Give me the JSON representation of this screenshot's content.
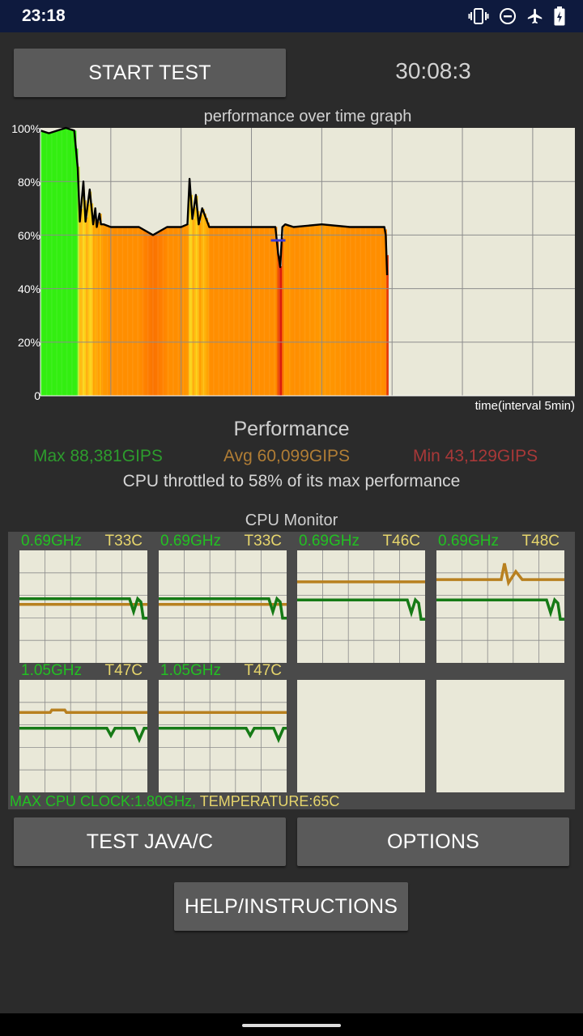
{
  "status_bar": {
    "time": "23:18",
    "icons": [
      "vibrate-icon",
      "do-not-disturb-icon",
      "airplane-mode-icon",
      "battery-charging-icon"
    ]
  },
  "controls": {
    "start_label": "START TEST",
    "timer": "30:08:3"
  },
  "graph": {
    "title": "performance over time graph",
    "y_ticks": [
      "100%",
      "80%",
      "60%",
      "40%",
      "20%",
      "0"
    ],
    "x_label": "time(interval 5min)",
    "chart_data": {
      "type": "line",
      "title": "performance over time graph",
      "xlabel": "time(interval 5min)",
      "ylabel": "",
      "ylim": [
        0,
        100
      ],
      "grid": true,
      "x": [
        0,
        0.6,
        1.8,
        2.4,
        2.65,
        2.8,
        3.05,
        3.2,
        3.5,
        3.75,
        3.9,
        4.0,
        4.2,
        4.3,
        4.5,
        5.0,
        6.0,
        7.0,
        8.0,
        9.0,
        9.6,
        10.0,
        10.45,
        10.6,
        10.8,
        11.05,
        11.25,
        11.5,
        12.0,
        13.0,
        14.0,
        16.0,
        16.7,
        16.9,
        17.05,
        17.2,
        17.4,
        18.0,
        20.0,
        22.0,
        24.0,
        24.45,
        24.55,
        24.65
      ],
      "series": [
        {
          "values": [
            99,
            98,
            100,
            99,
            85,
            65,
            80,
            65,
            77,
            64,
            70,
            63,
            68,
            64,
            64,
            63,
            63,
            63,
            60,
            63,
            63,
            63,
            64,
            81,
            66,
            75,
            64,
            70,
            63,
            63,
            63,
            63,
            63,
            53,
            48,
            63,
            64,
            63,
            64,
            63,
            63,
            63,
            60,
            45
          ]
        }
      ],
      "markers": [
        {
          "x": 16.9,
          "y": 58,
          "color": "#3b3bd8"
        }
      ],
      "colors": {
        "line": "#000000",
        "fill_high": "#33ee11",
        "fill_mid": "#ff9900",
        "fill_low": "#d8170d",
        "background": "#e9e8d8",
        "grid": "#8c8c8c"
      }
    }
  },
  "performance": {
    "title": "Performance",
    "max": "Max 88,381GIPS",
    "avg": "Avg 60,099GIPS",
    "min": "Min 43,129GIPS",
    "throttle": "CPU throttled to 58% of its max performance",
    "colors": {
      "max": "#2d9c2d",
      "avg": "#b07d35",
      "min": "#a83838"
    }
  },
  "cpu_monitor": {
    "title": "CPU Monitor",
    "cores": [
      {
        "freq": "0.69GHz",
        "temp": "T33C",
        "temp_level": 0.52,
        "freq_level": 0.57,
        "freq_dips": true
      },
      {
        "freq": "0.69GHz",
        "temp": "T33C",
        "temp_level": 0.52,
        "freq_level": 0.57,
        "freq_dips": true
      },
      {
        "freq": "0.69GHz",
        "temp": "T46C",
        "temp_level": 0.72,
        "freq_level": 0.56,
        "freq_dips": true
      },
      {
        "freq": "0.69GHz",
        "temp": "T48C",
        "temp_level": 0.74,
        "freq_level": 0.56,
        "freq_dips": true
      },
      {
        "freq": "1.05GHz",
        "temp": "T47C",
        "temp_level": 0.71,
        "freq_level": 0.57,
        "freq_dips": true
      },
      {
        "freq": "1.05GHz",
        "temp": "T47C",
        "temp_level": 0.71,
        "freq_level": 0.57,
        "freq_dips": true
      },
      {
        "freq": "",
        "temp": "",
        "temp_level": null,
        "freq_level": null
      },
      {
        "freq": "",
        "temp": "",
        "temp_level": null,
        "freq_level": null
      }
    ],
    "max_clock": "MAX CPU CLOCK:1.80GHz,",
    "temperature": " TEMPERATURE:65C",
    "colors": {
      "freq_line": "#167a16",
      "temp_line": "#b8801f",
      "freq_text": "#22c022",
      "temp_text": "#e6d56c",
      "grid": "#8c8c8c"
    }
  },
  "buttons": {
    "test_java_c": "TEST JAVA/C",
    "options": "OPTIONS",
    "help": "HELP/INSTRUCTIONS"
  }
}
